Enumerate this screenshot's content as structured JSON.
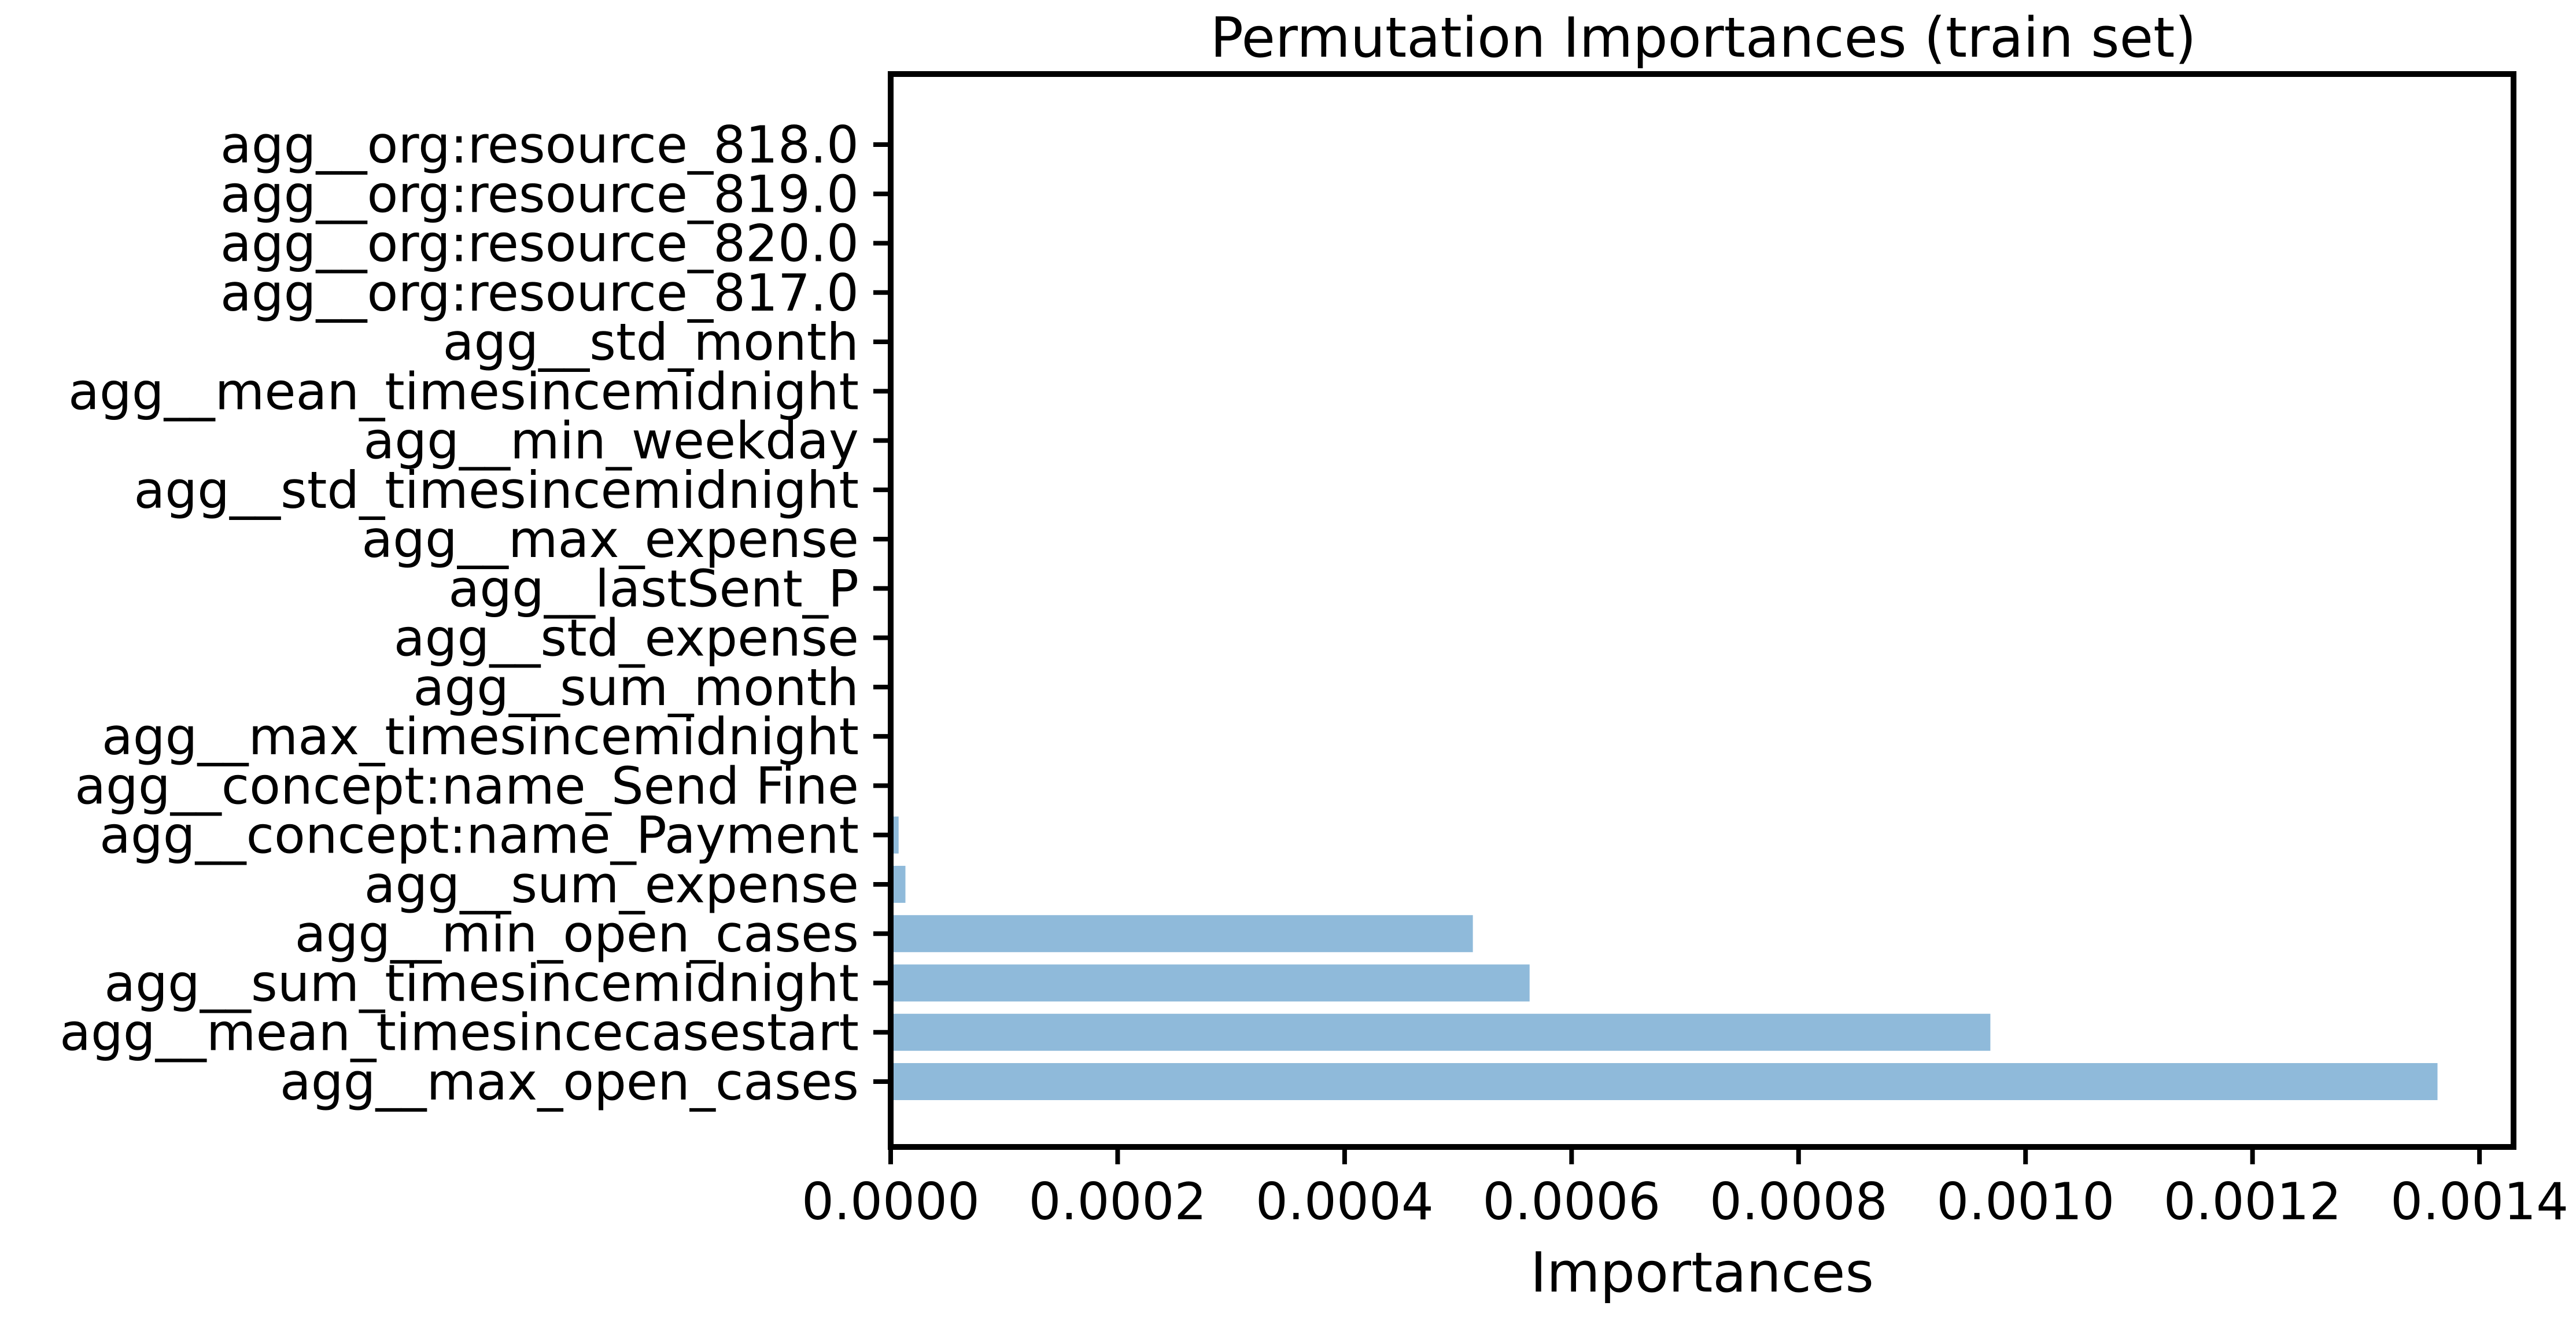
{
  "chart_data": {
    "type": "bar",
    "orientation": "horizontal",
    "title": "Permutation Importances (train set)",
    "xlabel": "Importances",
    "ylabel": "",
    "xlim": [
      0,
      0.00143
    ],
    "x_ticks": [
      0.0,
      0.0002,
      0.0004,
      0.0006,
      0.0008,
      0.001,
      0.0012,
      0.0014
    ],
    "x_tick_labels": [
      "0.0000",
      "0.0002",
      "0.0004",
      "0.0006",
      "0.0008",
      "0.0010",
      "0.0012",
      "0.0014"
    ],
    "grid": false,
    "bar_color": "#8fbada",
    "categories": [
      "agg__max_open_cases",
      "agg__mean_timesincecasestart",
      "agg__sum_timesincemidnight",
      "agg__min_open_cases",
      "agg__sum_expense",
      "agg__concept:name_Payment",
      "agg__concept:name_Send Fine",
      "agg__max_timesincemidnight",
      "agg__sum_month",
      "agg__std_expense",
      "agg__lastSent_P",
      "agg__max_expense",
      "agg__std_timesincemidnight",
      "agg__min_weekday",
      "agg__mean_timesincemidnight",
      "agg__std_month",
      "agg__org:resource_817.0",
      "agg__org:resource_820.0",
      "agg__org:resource_819.0",
      "agg__org:resource_818.0"
    ],
    "values": [
      0.001363,
      0.000969,
      0.000563,
      0.000513,
      1.3e-05,
      7e-06,
      0.0,
      0.0,
      0.0,
      0.0,
      0.0,
      0.0,
      0.0,
      0.0,
      0.0,
      0.0,
      0.0,
      0.0,
      0.0,
      0.0
    ]
  }
}
